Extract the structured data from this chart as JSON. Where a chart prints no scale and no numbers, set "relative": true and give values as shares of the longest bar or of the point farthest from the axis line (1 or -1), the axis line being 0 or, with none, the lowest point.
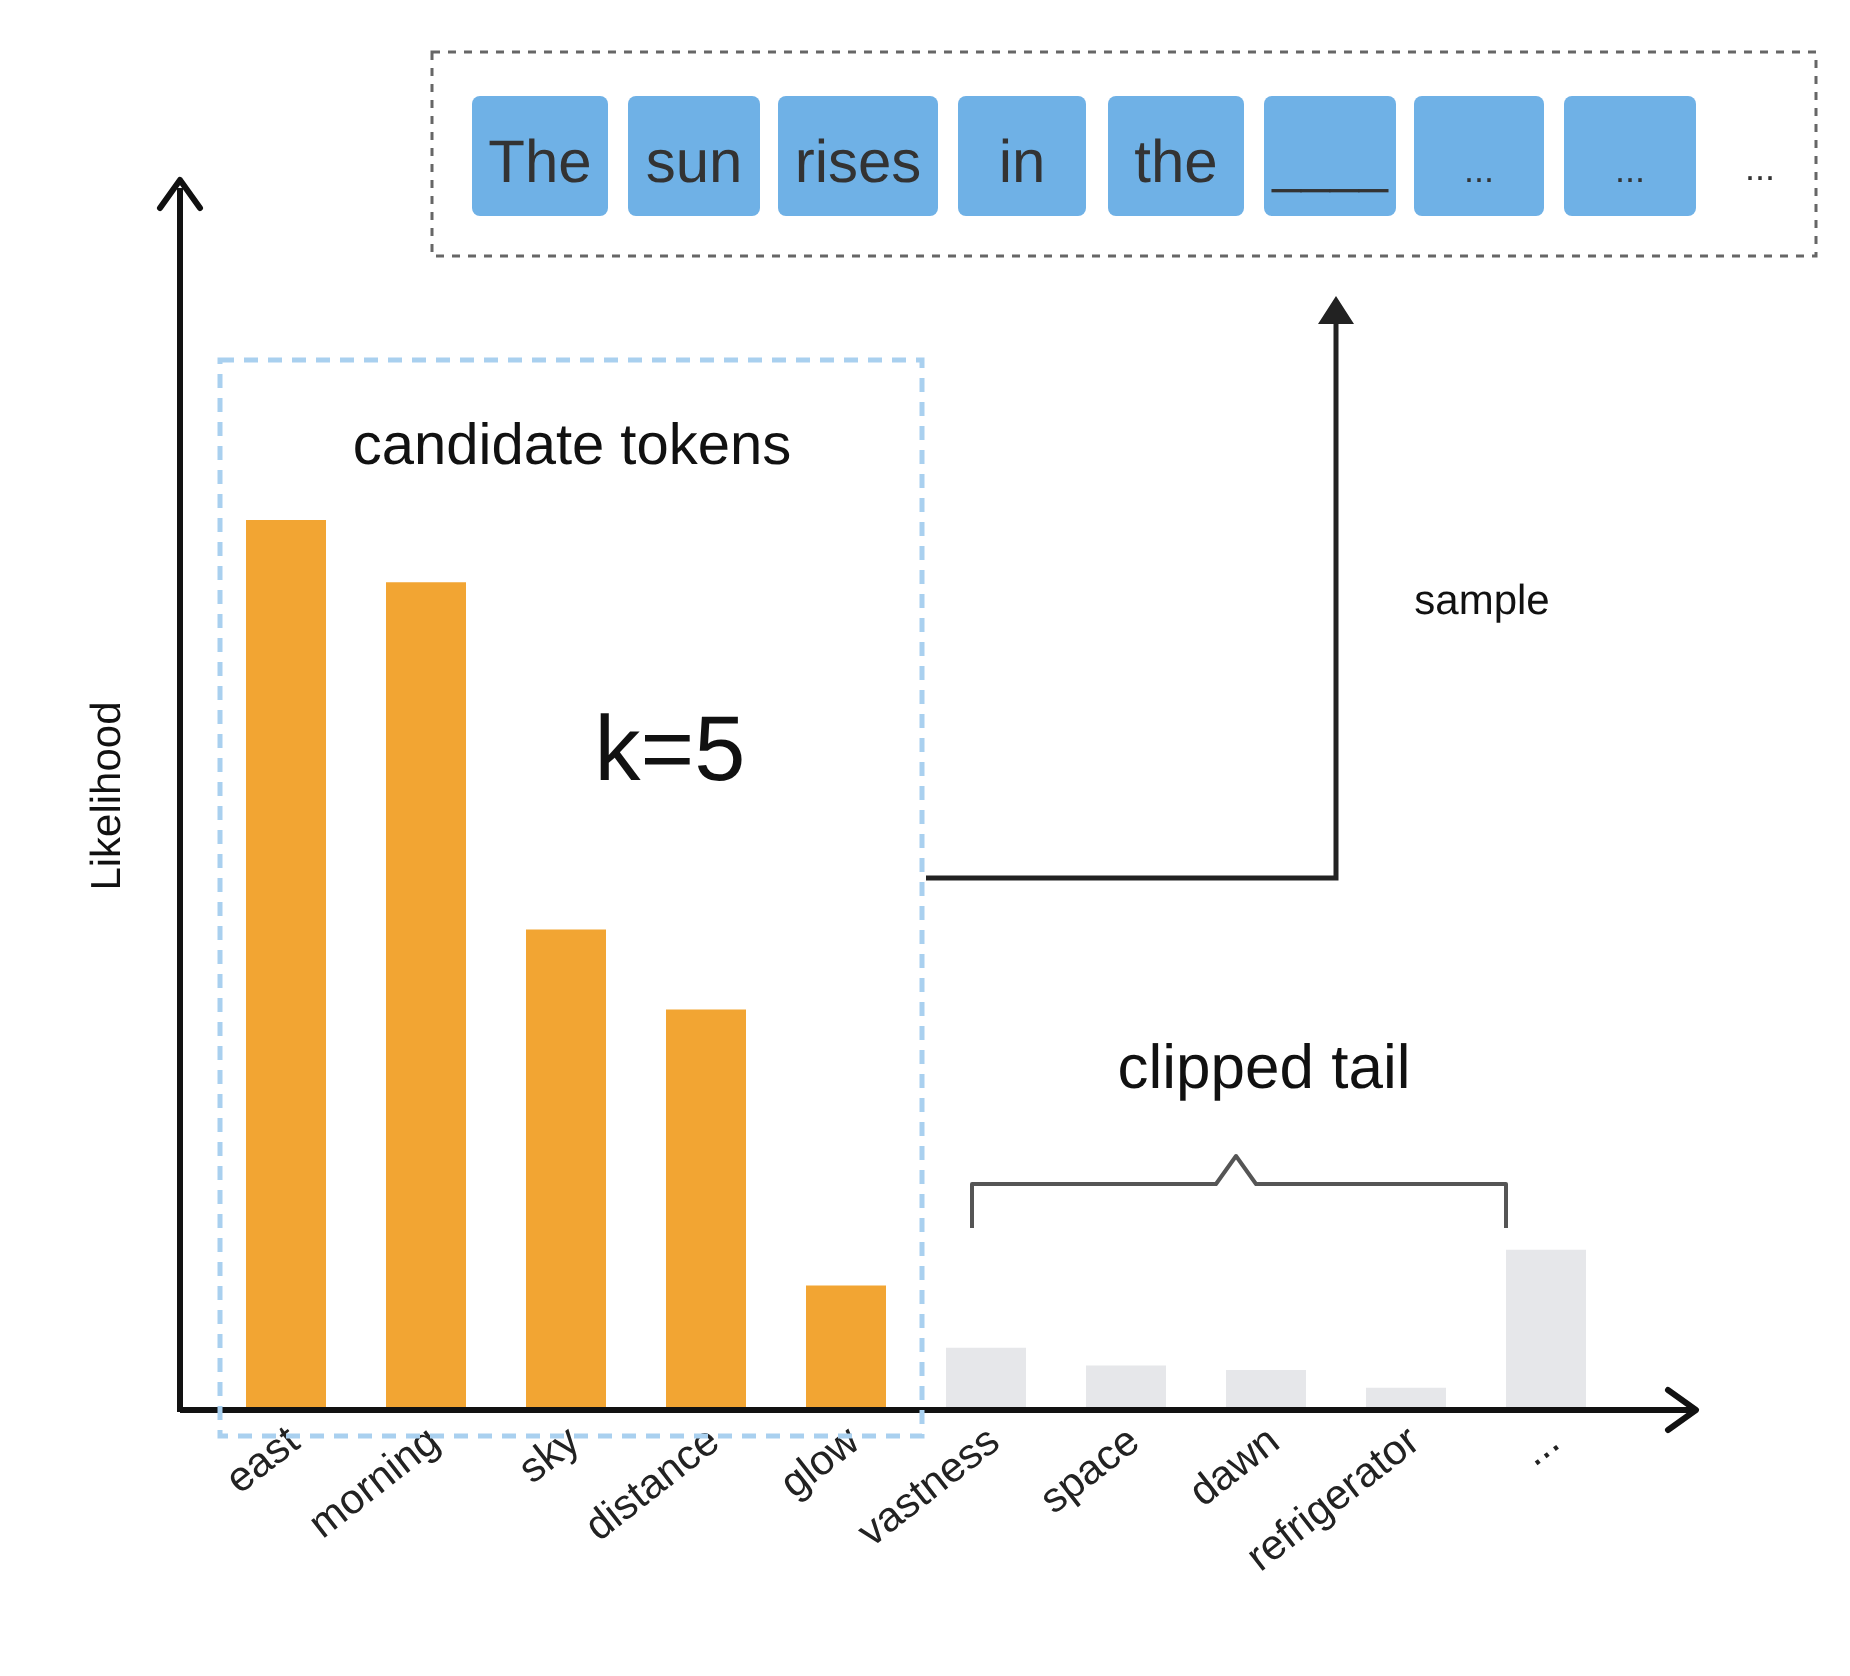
{
  "chart_data": {
    "type": "bar",
    "relative": true,
    "ylabel": "Likelihood",
    "categories": [
      "east",
      "morning",
      "sky",
      "distance",
      "glow",
      "vastness",
      "space",
      "dawn",
      "refrigerator",
      "..."
    ],
    "values": [
      1,
      0.93,
      0.54,
      0.45,
      0.14,
      0.07,
      0.05,
      0.045,
      0.025,
      0.18
    ],
    "colors": [
      "#f2a533",
      "#f2a533",
      "#f2a533",
      "#f2a533",
      "#f2a533",
      "#e6e7ea",
      "#e6e7ea",
      "#e6e7ea",
      "#e6e7ea",
      "#e6e7ea"
    ],
    "annotations": [
      "candidate tokens",
      "k=5",
      "sample",
      "clipped tail",
      "The",
      "sun",
      "rises",
      "in",
      "the",
      "____",
      "...",
      "...",
      "..."
    ],
    "legend": false,
    "grid": false
  }
}
